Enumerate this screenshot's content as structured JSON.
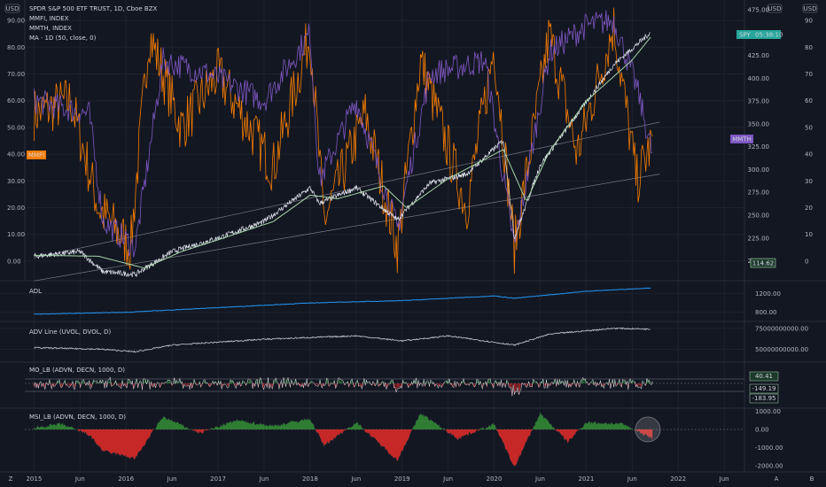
{
  "chart_data": [
    {
      "type": "line",
      "pane": "main",
      "legend": [
        "SPDR S&P 500 ETF TRUST, 1D, Cboe BZX",
        "MMFI, INDEX",
        "MMTH, INDEX",
        "MA · 1D (50, close, 0)"
      ],
      "currency_badge": "USD",
      "left_axis": {
        "ticks": [
          "90.00",
          "80.00",
          "70.00",
          "60.00",
          "50.00",
          "40.00",
          "30.00",
          "20.00",
          "10.00",
          "0.00"
        ],
        "range": [
          -5,
          95
        ]
      },
      "right_axis_price": {
        "ticks": [
          "475.00",
          "450.00",
          "425.00",
          "400.00",
          "375.00",
          "350.00",
          "325.00",
          "300.00",
          "275.00",
          "250.00",
          "225.00",
          "200.00"
        ],
        "range": [
          185,
          478
        ]
      },
      "right_axis_pct": {
        "ticks": [
          "90",
          "80",
          "70",
          "60",
          "50",
          "40",
          "30",
          "20",
          "10",
          "0"
        ]
      },
      "tags": {
        "spy": "SPY",
        "spy_time": "05:38:10",
        "mmth": "MMTH",
        "mmfi": "MMFI",
        "price_value": "114.62"
      },
      "series": [
        {
          "name": "SPY",
          "color": "#e0e3eb",
          "x": [
            2015.0,
            2015.5,
            2015.75,
            2016.1,
            2016.5,
            2017.0,
            2017.5,
            2018.0,
            2018.1,
            2018.5,
            2018.95,
            2019.3,
            2019.7,
            2020.1,
            2020.22,
            2020.5,
            2020.9,
            2021.3,
            2021.7
          ],
          "y": [
            205,
            210,
            188,
            185,
            210,
            225,
            243,
            280,
            263,
            280,
            245,
            285,
            295,
            332,
            225,
            305,
            360,
            415,
            450
          ]
        },
        {
          "name": "MA · 1D (50, close, 0)",
          "color": "#a5d6a7",
          "x": [
            2015.0,
            2015.7,
            2016.2,
            2016.6,
            2017.0,
            2017.6,
            2018.0,
            2018.3,
            2018.8,
            2019.05,
            2019.5,
            2020.1,
            2020.35,
            2020.6,
            2021.0,
            2021.5,
            2021.7
          ],
          "y": [
            206,
            205,
            192,
            210,
            223,
            243,
            272,
            268,
            282,
            258,
            290,
            322,
            265,
            320,
            375,
            420,
            445
          ]
        },
        {
          "name": "MMTH",
          "color": "#7e57c2",
          "x": [
            2015.0,
            2015.6,
            2015.75,
            2016.1,
            2016.4,
            2016.9,
            2017.5,
            2018.0,
            2018.1,
            2018.5,
            2018.95,
            2019.3,
            2019.9,
            2020.22,
            2020.6,
            2021.0,
            2021.3,
            2021.55,
            2021.72
          ],
          "y": [
            60,
            55,
            15,
            5,
            75,
            70,
            60,
            85,
            30,
            60,
            12,
            70,
            75,
            5,
            78,
            88,
            90,
            65,
            40
          ]
        },
        {
          "name": "MMFI",
          "color": "#f57c00",
          "x": [
            2015.0,
            2015.4,
            2015.7,
            2016.05,
            2016.25,
            2016.6,
            2017.0,
            2017.6,
            2018.0,
            2018.15,
            2018.6,
            2018.95,
            2019.2,
            2019.7,
            2020.0,
            2020.22,
            2020.6,
            2020.9,
            2021.3,
            2021.55,
            2021.72
          ],
          "y": [
            55,
            60,
            20,
            5,
            85,
            50,
            70,
            35,
            85,
            15,
            55,
            5,
            75,
            20,
            80,
            5,
            85,
            40,
            88,
            30,
            45
          ]
        }
      ]
    },
    {
      "type": "line",
      "pane": "adl",
      "legend": "ADL",
      "ticks": [
        "1200.00",
        "800.00"
      ],
      "series": [
        {
          "name": "ADL",
          "color": "#2196f3",
          "x": [
            2015.0,
            2016.0,
            2017.0,
            2018.0,
            2019.0,
            2020.0,
            2020.22,
            2021.0,
            2021.7
          ],
          "y": [
            760,
            800,
            900,
            1000,
            1050,
            1150,
            1100,
            1250,
            1320
          ]
        }
      ]
    },
    {
      "type": "line",
      "pane": "adv_line",
      "legend": "ADV Line (UVOL, DVOL, D)",
      "ticks": [
        "75000000000.00",
        "50000000000.00"
      ],
      "series": [
        {
          "name": "ADV Line (UVOL, DVOL, D)",
          "color": "#c8cbd2",
          "x": [
            2015.0,
            2015.75,
            2016.1,
            2016.5,
            2017.5,
            2018.5,
            2019.0,
            2019.5,
            2020.22,
            2020.6,
            2021.3,
            2021.7
          ],
          "y": [
            52,
            50,
            47,
            55,
            62,
            66,
            60,
            66,
            55,
            68,
            75,
            74
          ]
        }
      ]
    },
    {
      "type": "line",
      "pane": "mo_lb",
      "legend": "MO_LB (ADVN, DECN, 1000, D)",
      "tags": [
        "40.41",
        "-149.19",
        "-183.95"
      ]
    },
    {
      "type": "area",
      "pane": "msi_lb",
      "legend": "MSI_LB (ADVN, DECN, 1000, D)",
      "ticks": [
        "1000.00",
        "0.00",
        "-1000.00",
        "-2000.00"
      ],
      "series": [
        {
          "name": "MSI_LB (ADVN, DECN, 1000, D)",
          "x": [
            2015.0,
            2015.3,
            2015.6,
            2015.75,
            2016.1,
            2016.4,
            2016.8,
            2017.2,
            2017.6,
            2018.0,
            2018.15,
            2018.5,
            2018.95,
            2019.2,
            2019.6,
            2020.0,
            2020.22,
            2020.5,
            2020.8,
            2021.0,
            2021.4,
            2021.6,
            2021.72
          ],
          "y": [
            100,
            300,
            -300,
            -1200,
            -1600,
            700,
            -200,
            500,
            200,
            600,
            -900,
            400,
            -1700,
            900,
            -500,
            300,
            -2100,
            900,
            -700,
            400,
            300,
            -200,
            -500
          ]
        }
      ]
    }
  ],
  "x_axis": {
    "labels": [
      "2015",
      "Jun",
      "2016",
      "Jun",
      "2017",
      "Jun",
      "2018",
      "Jun",
      "2019",
      "Jun",
      "2020",
      "Jun",
      "2021",
      "Jun",
      "2022",
      "Jun"
    ]
  },
  "footer": {
    "left_icon": "Z",
    "right_icons": [
      "A",
      "B"
    ]
  }
}
